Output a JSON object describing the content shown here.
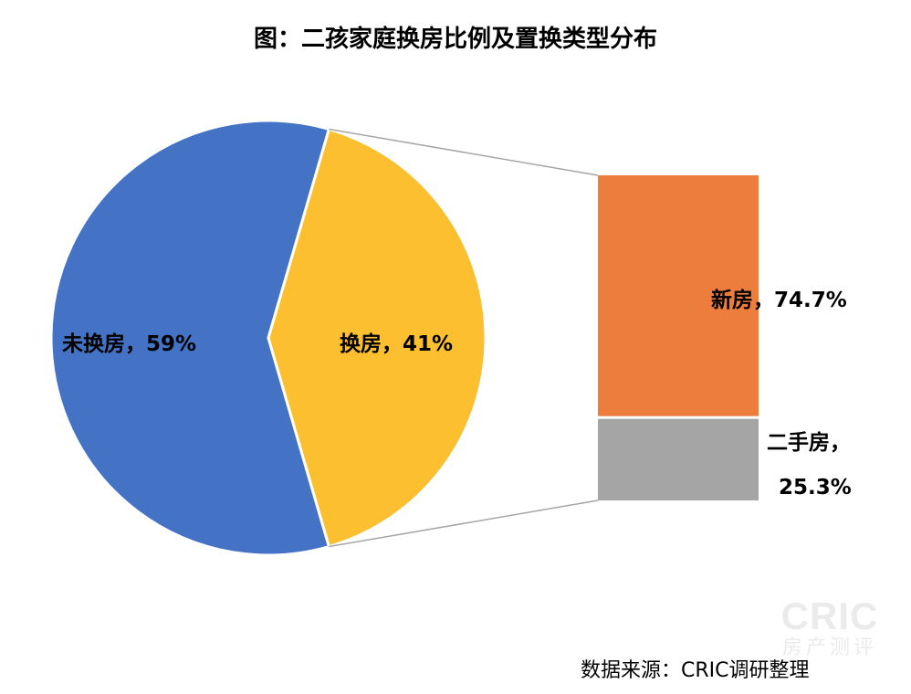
{
  "chart_data": {
    "type": "pie",
    "title": "图：二孩家庭换房比例及置换类型分布",
    "pie": {
      "slices": [
        {
          "label": "未换房，59%",
          "name": "未换房",
          "value": 59,
          "color": "#4472C4"
        },
        {
          "label": "换房，41%",
          "name": "换房",
          "value": 41,
          "color": "#FBBF30"
        }
      ]
    },
    "bar": {
      "parent": "换房",
      "segments": [
        {
          "label": "新房，74.7%",
          "name": "新房",
          "value": 74.7,
          "color": "#ED7D3C"
        },
        {
          "label_line1": "二手房，",
          "label_line2": "25.3%",
          "name": "二手房",
          "value": 25.3,
          "color": "#A5A5A5"
        }
      ]
    }
  },
  "source": "数据来源：CRIC调研整理",
  "watermark": {
    "main": "CRIC",
    "sub": "房产测评"
  }
}
